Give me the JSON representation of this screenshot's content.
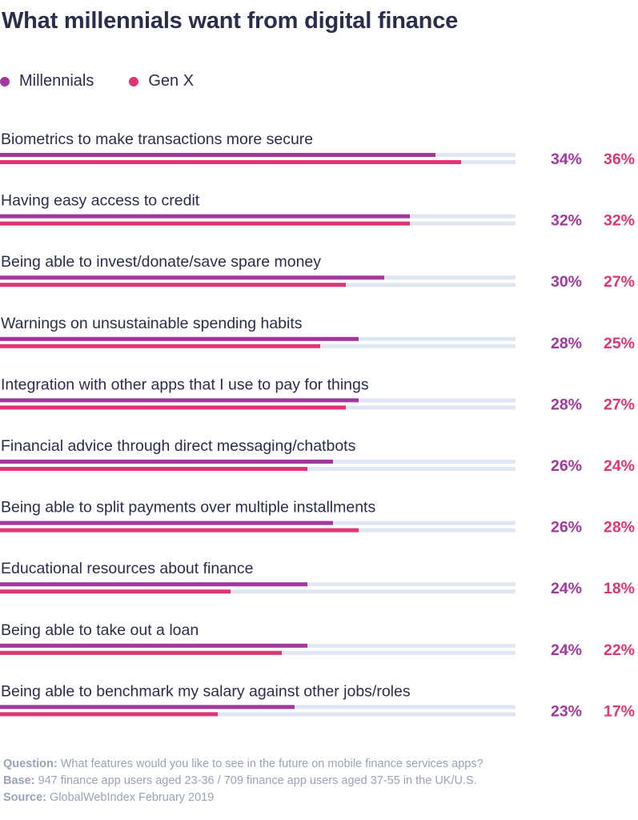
{
  "colors": {
    "millennials": "#a2379e",
    "genx": "#e23573",
    "track": "#e0e6f2",
    "text": "#2b2d4e",
    "footer": "#9aa3b5"
  },
  "chart_data": {
    "type": "bar",
    "orientation": "horizontal",
    "title": "What millennials want from digital finance",
    "value_unit": "%",
    "xlim": [
      0,
      60
    ],
    "grid": false,
    "legend_position": "top-left",
    "categories": [
      "Biometrics to make transactions more secure",
      "Having easy access to credit",
      "Being able to invest/donate/save spare money",
      "Warnings on unsustainable spending habits",
      "Integration with other apps that I use to pay for things",
      "Financial advice through direct messaging/chatbots",
      "Being able to split payments over multiple installments",
      "Educational resources about finance",
      "Being able to take out a loan",
      "Being able to benchmark my salary against other jobs/roles"
    ],
    "series": [
      {
        "name": "Millennials",
        "values": [
          34,
          32,
          30,
          28,
          28,
          26,
          26,
          24,
          24,
          23
        ]
      },
      {
        "name": "Gen X",
        "values": [
          36,
          32,
          27,
          25,
          27,
          24,
          28,
          18,
          22,
          17
        ]
      }
    ]
  },
  "footer": {
    "question_label": "Question:",
    "question_text": "What features would you like to see in the future on mobile finance services apps?",
    "base_label": "Base:",
    "base_text": "947 finance app users aged 23-36 / 709 finance app users aged 37-55 in the UK/U.S.",
    "source_label": "Source:",
    "source_text": "GlobalWebIndex February 2019"
  }
}
